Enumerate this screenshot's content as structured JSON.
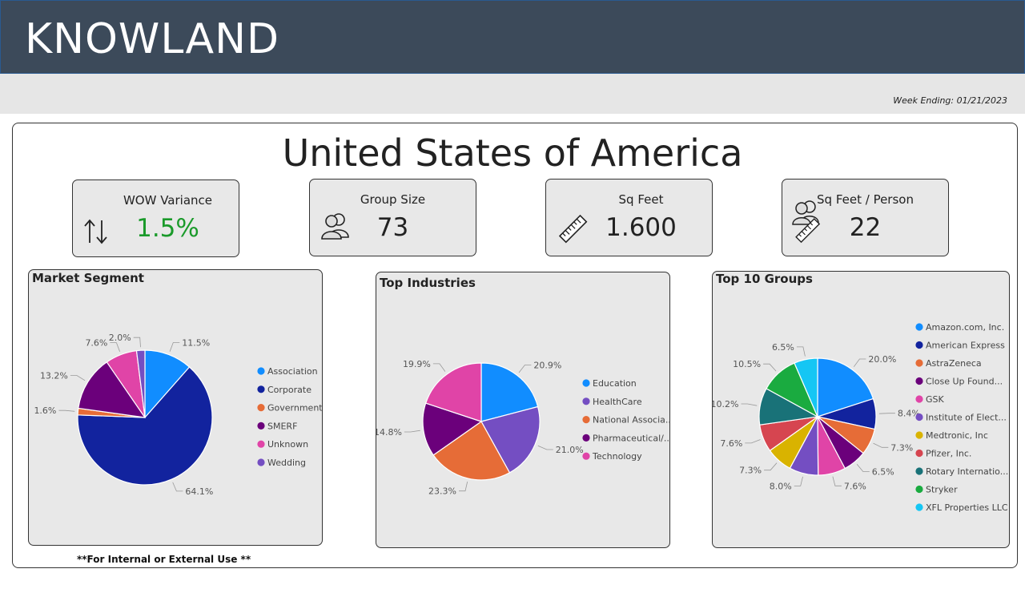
{
  "header": {
    "logo": "KNOWLAND",
    "week_ending": "Week Ending: 01/21/2023"
  },
  "title": "United States of America",
  "kpis": [
    {
      "title": "WOW Variance",
      "value": "1.5%",
      "icon": "up-down-arrows-icon",
      "color": "#1a9a2a"
    },
    {
      "title": "Group Size",
      "value": "73",
      "icon": "people-icon",
      "color": "#222222"
    },
    {
      "title": "Sq Feet",
      "value": "1.600",
      "icon": "ruler-icon",
      "color": "#222222"
    },
    {
      "title": "Sq Feet / Person",
      "value": "22",
      "icon": "people-ruler-icon",
      "color": "#222222"
    }
  ],
  "footer": "**For Internal or External Use **",
  "chart_data": [
    {
      "type": "pie",
      "title": "Market Segment",
      "labels": [
        "Association",
        "Corporate",
        "Government",
        "SMERF",
        "Unknown",
        "Wedding"
      ],
      "values": [
        11.5,
        64.1,
        1.6,
        13.2,
        7.6,
        2.0
      ],
      "value_labels": [
        "11.5%",
        "64.1%",
        "1.6%",
        "13.2%",
        "7.6%",
        "2.0%"
      ],
      "colors": [
        "#118dff",
        "#12239e",
        "#e66c37",
        "#6b007b",
        "#e044a7",
        "#744ec2"
      ],
      "legend": "right"
    },
    {
      "type": "pie",
      "title": "Top Industries",
      "labels": [
        "Education",
        "HealthCare",
        "National Associa...",
        "Pharmaceutical/...",
        "Technology"
      ],
      "values": [
        20.9,
        21.0,
        23.3,
        14.8,
        19.9
      ],
      "value_labels": [
        "20.9%",
        "21.0%",
        "23.3%",
        "14.8%",
        "19.9%"
      ],
      "colors": [
        "#118dff",
        "#744ec2",
        "#e66c37",
        "#6b007b",
        "#e044a7"
      ],
      "legend": "right"
    },
    {
      "type": "pie",
      "title": "Top 10 Groups",
      "labels": [
        "Amazon.com, Inc.",
        "American Express",
        "AstraZeneca",
        "Close Up Found...",
        "GSK",
        "Institute of Elect...",
        "Medtronic, Inc",
        "Pfizer, Inc.",
        "Rotary Internatio...",
        "Stryker",
        "XFL Properties LLC"
      ],
      "values": [
        20.0,
        8.4,
        7.3,
        6.5,
        7.6,
        8.0,
        7.3,
        7.6,
        10.2,
        10.5,
        6.5
      ],
      "value_labels": [
        "20.0%",
        "8.4%",
        "7.3%",
        "6.5%",
        "7.6%",
        "8.0%",
        "7.3%",
        "7.6%",
        "10.2%",
        "10.5%",
        "6.5%"
      ],
      "colors": [
        "#118dff",
        "#12239e",
        "#e66c37",
        "#6b007b",
        "#e044a7",
        "#744ec2",
        "#d9b300",
        "#d64550",
        "#197278",
        "#1aab40",
        "#15c6f4"
      ],
      "legend": "right"
    }
  ]
}
